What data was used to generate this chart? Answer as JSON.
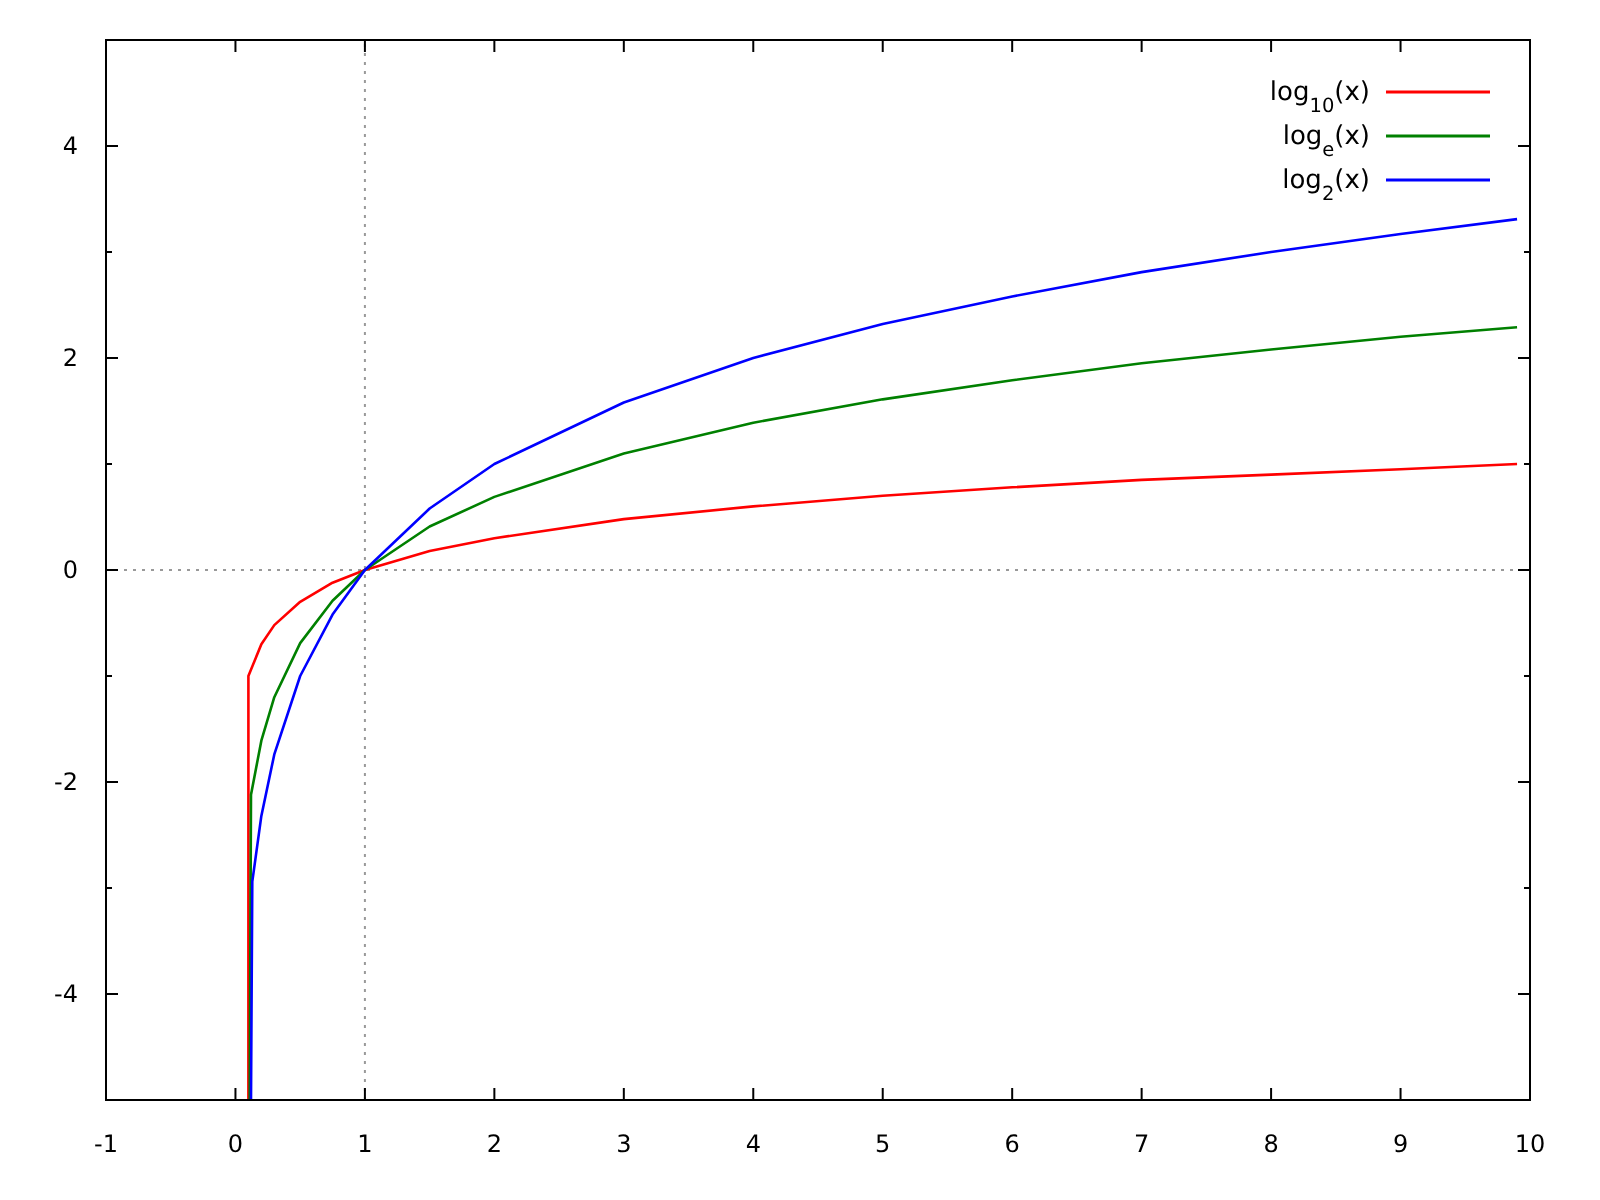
{
  "chart_data": {
    "type": "line",
    "xlim": [
      -1,
      10
    ],
    "ylim": [
      -5,
      5
    ],
    "xticks": [
      -1,
      0,
      1,
      2,
      3,
      4,
      5,
      6,
      7,
      8,
      9,
      10
    ],
    "yticks": [
      {
        "value": -5,
        "label": null
      },
      -4,
      {
        "value": -3,
        "label": null
      },
      -2,
      {
        "value": -1,
        "label": null
      },
      0,
      {
        "value": 1,
        "label": null
      },
      2,
      {
        "value": 3,
        "label": null
      },
      4,
      {
        "value": 5,
        "label": null
      }
    ],
    "grid": false,
    "legend": "top right",
    "line_style": "solid",
    "ref_lines": [
      {
        "axis": "x",
        "value": 1,
        "color": "#999999",
        "line_style": "dotted"
      },
      {
        "axis": "y",
        "value": 0,
        "color": "#999999",
        "line_style": "dotted"
      }
    ],
    "series": [
      {
        "name": "log$_{10}$(x)",
        "color": "#ff0000",
        "x": [
          0.1,
          0.1,
          0.2,
          0.3,
          0.5,
          0.75,
          1,
          1.5,
          2,
          3,
          4,
          5,
          6,
          7,
          8,
          9,
          9.9
        ],
        "values": [
          -5,
          -1,
          -0.7,
          -0.52,
          -0.3,
          -0.12,
          0,
          0.18,
          0.3,
          0.48,
          0.6,
          0.7,
          0.78,
          0.85,
          0.9,
          0.95,
          1
        ]
      },
      {
        "name": "log$_{e}$(x)",
        "color": "#008000",
        "x": [
          0.11,
          0.12,
          0.2,
          0.3,
          0.5,
          0.75,
          1,
          1.5,
          2,
          3,
          4,
          5,
          6,
          7,
          8,
          9,
          9.9
        ],
        "values": [
          -5,
          -2.12,
          -1.61,
          -1.2,
          -0.69,
          -0.29,
          0,
          0.41,
          0.69,
          1.1,
          1.39,
          1.61,
          1.79,
          1.95,
          2.08,
          2.2,
          2.29
        ]
      },
      {
        "name": "log$_{2}$(x)",
        "color": "#0000ff",
        "x": [
          0.12,
          0.13,
          0.2,
          0.3,
          0.5,
          0.75,
          1,
          1.5,
          2,
          3,
          4,
          5,
          6,
          7,
          8,
          9,
          9.9
        ],
        "values": [
          -5,
          -2.94,
          -2.32,
          -1.74,
          -1,
          -0.42,
          0,
          0.58,
          1,
          1.58,
          2,
          2.32,
          2.58,
          2.81,
          3,
          3.17,
          3.31
        ]
      }
    ]
  }
}
